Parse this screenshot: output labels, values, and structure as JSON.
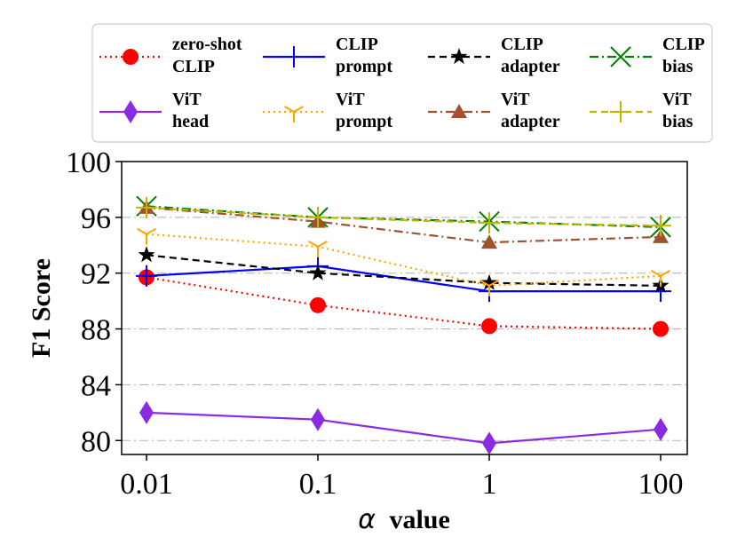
{
  "chart_data": {
    "type": "line",
    "x_categories": [
      "0.01",
      "0.1",
      "1",
      "100"
    ],
    "xlabel_symbol": "α",
    "xlabel_rest": "value",
    "ylabel": "F1 Score",
    "ylim": [
      79,
      100
    ],
    "yticks": [
      "80",
      "84",
      "88",
      "92",
      "96",
      "100"
    ],
    "ytick_values": [
      80,
      84,
      88,
      92,
      96,
      100
    ],
    "grid_y_values": [
      80,
      84,
      88,
      92,
      96
    ],
    "legend_position": "top",
    "series": [
      {
        "name": "zero-shot CLIP",
        "label_lines": [
          "zero-shot",
          "CLIP"
        ],
        "values": [
          91.7,
          89.7,
          88.2,
          88.0
        ],
        "color": "#ff0000",
        "dash": "dotted",
        "marker": "circle"
      },
      {
        "name": "CLIP prompt",
        "label_lines": [
          "CLIP",
          "prompt"
        ],
        "values": [
          91.8,
          92.5,
          90.7,
          90.7
        ],
        "color": "#0000ff",
        "dash": "solid",
        "marker": "plus"
      },
      {
        "name": "CLIP adapter",
        "label_lines": [
          "CLIP",
          "adapter"
        ],
        "values": [
          93.3,
          92.0,
          91.3,
          91.1
        ],
        "color": "#000000",
        "dash": "dashed",
        "marker": "star"
      },
      {
        "name": "CLIP bias",
        "label_lines": [
          "CLIP",
          "bias"
        ],
        "values": [
          96.8,
          96.0,
          95.7,
          95.3
        ],
        "color": "#008000",
        "dash": "dashdot",
        "marker": "x"
      },
      {
        "name": "ViT head",
        "label_lines": [
          "ViT",
          "head"
        ],
        "values": [
          82.0,
          81.5,
          79.8,
          80.8
        ],
        "color": "#8a2be2",
        "dash": "solid",
        "marker": "diamond"
      },
      {
        "name": "ViT prompt",
        "label_lines": [
          "ViT",
          "prompt"
        ],
        "values": [
          94.8,
          93.9,
          91.1,
          91.8
        ],
        "color": "#ffa500",
        "dash": "dotted",
        "marker": "tri_down"
      },
      {
        "name": "ViT adapter",
        "label_lines": [
          "ViT",
          "adapter"
        ],
        "values": [
          96.7,
          95.7,
          94.2,
          94.6
        ],
        "color": "#a0522d",
        "dash": "dashdot",
        "marker": "triangle"
      },
      {
        "name": "ViT bias",
        "label_lines": [
          "ViT",
          "bias"
        ],
        "values": [
          96.7,
          96.0,
          95.6,
          95.4
        ],
        "color": "#bdb700",
        "dash": "dashed",
        "marker": "plus"
      }
    ]
  }
}
